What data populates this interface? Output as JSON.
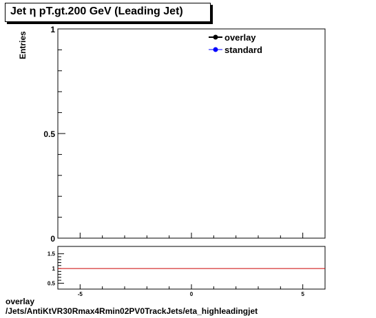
{
  "title": "Jet  η pT.gt.200 GeV (Leading Jet)",
  "footer": {
    "line1": "overlay",
    "line2": "/Jets/AntiKtVR30Rmax4Rmin02PV0TrackJets/eta_highleadingjet"
  },
  "colors": {
    "overlay": "#000000",
    "standard": "#0000ff",
    "ratio_line": "#cc0000"
  },
  "chart_data": [
    {
      "type": "line",
      "title": "Jet  η pT.gt.200 GeV (Leading Jet)",
      "ylabel": "Entries",
      "xlabel": "",
      "xlim": [
        -6,
        6
      ],
      "ylim": [
        0,
        1
      ],
      "y_ticks": [
        "0",
        "0.5",
        "1"
      ],
      "legend": {
        "placement": "top-right"
      },
      "series": [
        {
          "name": "overlay",
          "x": [],
          "y": []
        },
        {
          "name": "standard",
          "x": [],
          "y": []
        }
      ]
    },
    {
      "type": "line",
      "xlim": [
        -6,
        6
      ],
      "ylim": [
        0.3,
        1.75
      ],
      "x_ticks": [
        "-5",
        "0",
        "5"
      ],
      "y_ticks": [
        "0.5",
        "1",
        "1.5"
      ],
      "reference_line": 1
    }
  ]
}
